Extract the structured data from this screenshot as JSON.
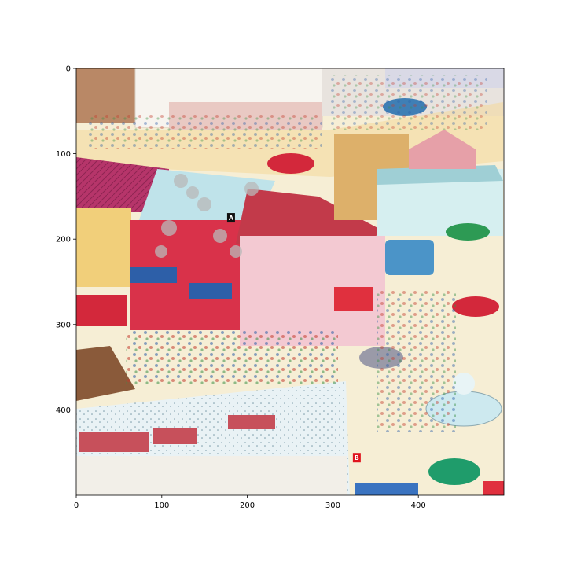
{
  "figure": {
    "description_free": true,
    "axes": {
      "x_ticks": [
        "0",
        "100",
        "200",
        "300",
        "400"
      ],
      "y_ticks": [
        "0",
        "100",
        "200",
        "300",
        "400"
      ],
      "x_range": [
        0,
        500
      ],
      "y_range": [
        500,
        0
      ]
    },
    "markers": [
      {
        "name": "marker-a",
        "label": "A",
        "x": 181,
        "y": 175,
        "color": "#111111"
      },
      {
        "name": "marker-b",
        "label": "B",
        "x": 328,
        "y": 456,
        "color": "#e0141e"
      }
    ],
    "palette": {
      "sky_building": "#bfe3ea",
      "pink_building": "#f3c9d2",
      "red_building": "#d9324a",
      "roof_magenta": "#b6356a",
      "street": "#f6eed5",
      "sidewalk": "#f4d999",
      "car_green": "#1f9c6b",
      "car_red": "#d3283b"
    }
  }
}
